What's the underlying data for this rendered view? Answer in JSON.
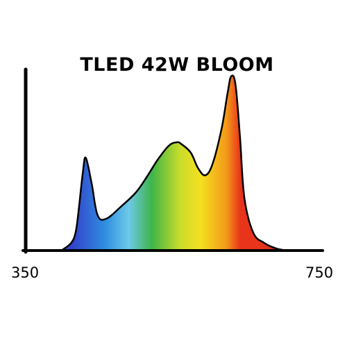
{
  "chart_data": {
    "type": "area",
    "title": "TLED 42W BLOOM",
    "xlabel": "",
    "ylabel": "",
    "xlim": [
      350,
      750
    ],
    "ylim": [
      0,
      1
    ],
    "x_tick_labels": [
      "350",
      "750"
    ],
    "grid": false,
    "legend": "none",
    "series": [
      {
        "x": [
          400,
          412,
          418,
          422,
          428,
          432,
          440,
          448,
          460,
          480,
          500,
          515,
          530,
          545,
          556,
          562,
          575,
          585,
          595,
          605,
          617,
          625,
          630,
          636,
          642,
          648,
          660,
          675,
          690,
          700
        ],
        "y": [
          0.0,
          0.04,
          0.1,
          0.22,
          0.45,
          0.53,
          0.38,
          0.2,
          0.18,
          0.25,
          0.33,
          0.42,
          0.52,
          0.6,
          0.62,
          0.61,
          0.56,
          0.47,
          0.43,
          0.5,
          0.7,
          0.9,
          1.0,
          0.95,
          0.65,
          0.3,
          0.1,
          0.04,
          0.01,
          0.0
        ]
      }
    ],
    "colors": {
      "violet_blue": "#3344cc",
      "blue": "#2f8fe0",
      "cyan": "#6ec8e8",
      "green": "#3fb548",
      "yellow_green": "#c8dc2a",
      "yellow": "#f5e020",
      "orange": "#f39a1a",
      "red": "#e8341a",
      "dark_red": "#c0201a",
      "outline": "#000000"
    }
  }
}
